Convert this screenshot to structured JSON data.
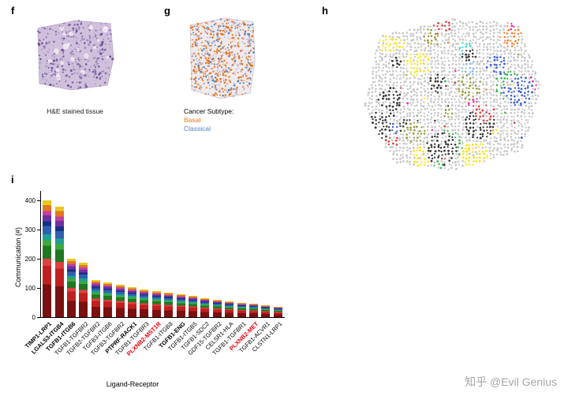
{
  "watermark": "知乎 @Evil Genius",
  "panels": {
    "f": {
      "letter": "f",
      "caption": "H&E stained tissue"
    },
    "g": {
      "letter": "g",
      "legend_title": "Cancer Subtype:",
      "legend": [
        {
          "label": "Basal",
          "color": "#E8761E"
        },
        {
          "label": "Classical",
          "color": "#4F86C6"
        }
      ]
    },
    "h": {
      "letter": "h",
      "palette": [
        "#d94040",
        "#3cb44b",
        "#4363d8",
        "#ffe119",
        "#911eb4",
        "#42d4c8",
        "#f032a6",
        "#3a3a3a",
        "#87b9e8",
        "#9a9a40",
        "#f58231"
      ],
      "background_dot_color": "#c6c6c6"
    },
    "i": {
      "letter": "i"
    }
  },
  "chart_data": {
    "type": "bar",
    "stacked": true,
    "title": "",
    "xlabel": "Ligand-Receptor",
    "ylabel": "Communication (#)",
    "ylim": [
      0,
      430
    ],
    "yticks": [
      0,
      100,
      200,
      300,
      400
    ],
    "categories": [
      "TIMP1-LRP1",
      "LGALS3-ITGB4",
      "TGFB1-ITGB6",
      "TGFB1-TGFBR2",
      "TGFB2-TGFBR2",
      "TGFB3-ITGB6",
      "TGFB3-TGFBR2",
      "PTPRF-RACK1",
      "TGFB1-TGFBR3",
      "PLXNB2-MST1R",
      "TGFB1-ITGB8",
      "TGFB1-ENG",
      "TGFB1-ITGB5",
      "TGFB1-SDC2",
      "GDF15-TGFBR2",
      "CELSR1-HLA",
      "TGFB1-TGFBR1",
      "PLXNB2-MET",
      "TGFB1-ACVR1",
      "CLSTN1-LRP1"
    ],
    "label_styles": [
      "bold",
      "bold",
      "bold",
      "normal",
      "normal",
      "normal",
      "normal",
      "bold",
      "normal",
      "bold-red",
      "normal",
      "bold",
      "normal",
      "normal",
      "normal",
      "normal",
      "normal",
      "bold-red",
      "normal",
      "normal"
    ],
    "values": [
      400,
      378,
      200,
      186,
      128,
      118,
      110,
      102,
      96,
      90,
      84,
      78,
      72,
      66,
      60,
      55,
      50,
      45,
      40,
      36
    ],
    "stack_colors": [
      "#7a1010",
      "#c02020",
      "#e04040",
      "#207820",
      "#40a840",
      "#20a090",
      "#3060b0",
      "#183080",
      "#7030a0",
      "#c040a0",
      "#e07820",
      "#e8c820"
    ],
    "stack_fractions": [
      0.28,
      0.16,
      0.06,
      0.11,
      0.05,
      0.05,
      0.07,
      0.04,
      0.05,
      0.04,
      0.05,
      0.04
    ]
  }
}
